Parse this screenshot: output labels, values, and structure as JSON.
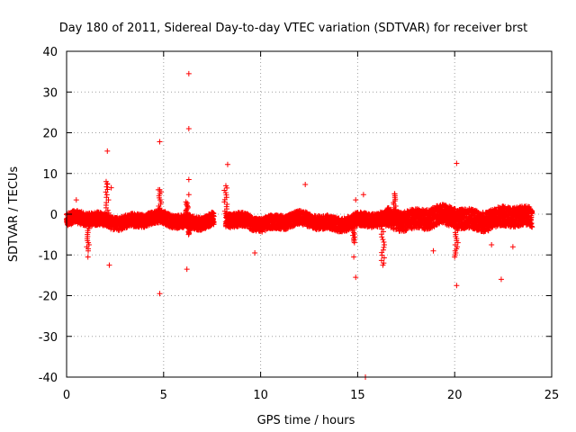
{
  "chart_data": {
    "type": "scatter",
    "title": "Day 180 of 2011, Sidereal Day-to-day VTEC variation (SDTVAR) for receiver brst",
    "xlabel": "GPS time / hours",
    "ylabel": "SDTVAR / TECUs",
    "xlim": [
      0,
      25
    ],
    "ylim": [
      -40,
      40
    ],
    "xticks": [
      0,
      5,
      10,
      15,
      20,
      25
    ],
    "yticks": [
      -40,
      -30,
      -20,
      -10,
      0,
      10,
      20,
      30,
      40
    ],
    "xtick_labels": [
      "0",
      "5",
      "10",
      "15",
      "20",
      "25"
    ],
    "ytick_labels": [
      "-40",
      "-30",
      "-20",
      "-10",
      "0",
      "10",
      "20",
      "30",
      "40"
    ],
    "grid": true,
    "marker": "+",
    "series_color": "#ff0000",
    "band_segments": [
      {
        "x": [
          0.0,
          7.6
        ],
        "center": -1.5,
        "spread": 1.6
      },
      {
        "x": [
          8.2,
          16.5
        ],
        "center": -1.8,
        "spread": 1.7
      },
      {
        "x": [
          16.5,
          24.0
        ],
        "center": -1.0,
        "spread": 2.4
      }
    ],
    "outliers": [
      {
        "x": 6.3,
        "y": 34.5
      },
      {
        "x": 6.3,
        "y": 21.0
      },
      {
        "x": 4.8,
        "y": 17.8
      },
      {
        "x": 2.1,
        "y": 15.5
      },
      {
        "x": 20.1,
        "y": 12.5
      },
      {
        "x": 8.3,
        "y": 12.2
      },
      {
        "x": 6.3,
        "y": 8.5
      },
      {
        "x": 2.1,
        "y": 7.5
      },
      {
        "x": 2.3,
        "y": 6.5
      },
      {
        "x": 12.3,
        "y": 7.3
      },
      {
        "x": 4.8,
        "y": 6.0
      },
      {
        "x": 6.3,
        "y": 4.8
      },
      {
        "x": 0.5,
        "y": 3.5
      },
      {
        "x": 14.9,
        "y": 3.5
      },
      {
        "x": 15.3,
        "y": 4.8
      },
      {
        "x": 16.9,
        "y": 5.0
      },
      {
        "x": 2.2,
        "y": -12.5
      },
      {
        "x": 6.2,
        "y": -13.5
      },
      {
        "x": 1.1,
        "y": -10.5
      },
      {
        "x": 9.7,
        "y": -9.5
      },
      {
        "x": 14.8,
        "y": -10.5
      },
      {
        "x": 14.9,
        "y": -15.5
      },
      {
        "x": 4.8,
        "y": -19.5
      },
      {
        "x": 20.1,
        "y": -17.5
      },
      {
        "x": 22.4,
        "y": -16.0
      },
      {
        "x": 15.4,
        "y": -40.0
      },
      {
        "x": 16.3,
        "y": -12.5
      },
      {
        "x": 20.0,
        "y": -10.5
      },
      {
        "x": 21.9,
        "y": -7.5
      },
      {
        "x": 23.0,
        "y": -8.0
      },
      {
        "x": 18.9,
        "y": -9.0
      }
    ],
    "dips": [
      {
        "x": 1.1,
        "y0": -2.0,
        "y1": -9.0
      },
      {
        "x": 16.3,
        "y0": -3.0,
        "y1": -12.0
      },
      {
        "x": 20.1,
        "y0": -3.0,
        "y1": -10.0
      },
      {
        "x": 14.8,
        "y0": -2.0,
        "y1": -7.0
      },
      {
        "x": 6.3,
        "y0": -2.0,
        "y1": -5.0
      }
    ],
    "spikes": [
      {
        "x": 2.1,
        "y0": -1.0,
        "y1": 8.0
      },
      {
        "x": 4.8,
        "y0": -1.0,
        "y1": 6.0
      },
      {
        "x": 8.2,
        "y0": -1.0,
        "y1": 7.0
      },
      {
        "x": 16.9,
        "y0": -1.0,
        "y1": 5.0
      },
      {
        "x": 6.2,
        "y0": -1.0,
        "y1": 3.0
      }
    ]
  }
}
